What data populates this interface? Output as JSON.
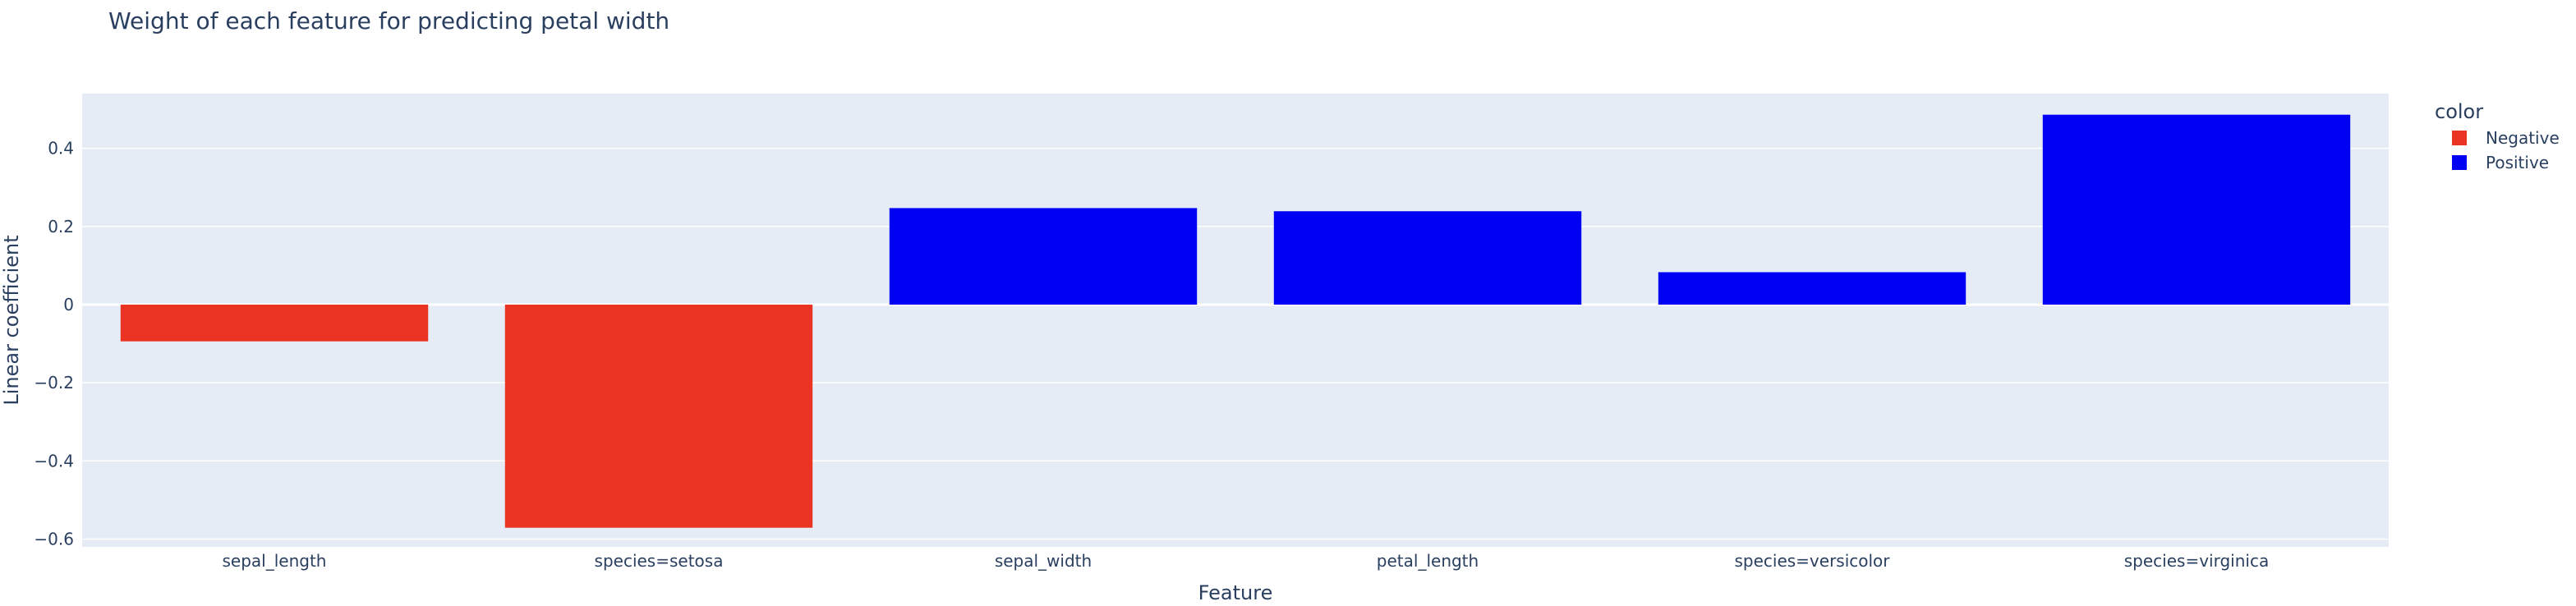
{
  "chart_data": {
    "type": "bar",
    "title": "Weight of each feature for predicting petal width",
    "xlabel": "Feature",
    "ylabel": "Linear coefficient",
    "categories": [
      "sepal_length",
      "species=setosa",
      "sepal_width",
      "petal_length",
      "species=versicolor",
      "species=virginica"
    ],
    "values": [
      -0.094,
      -0.571,
      0.247,
      0.239,
      0.083,
      0.486
    ],
    "bar_color_group": [
      "Negative",
      "Negative",
      "Positive",
      "Positive",
      "Positive",
      "Positive"
    ],
    "ylim": [
      -0.62,
      0.54
    ],
    "yticks": [
      0.4,
      0.2,
      0,
      -0.2,
      -0.4,
      -0.6
    ],
    "ytick_labels": [
      "0.4",
      "0.2",
      "0",
      "−0.2",
      "−0.4",
      "−0.6"
    ],
    "grid": true,
    "legend": {
      "title": "color",
      "position": "right",
      "entries": [
        {
          "name": "Negative",
          "color": "#EB3323"
        },
        {
          "name": "Positive",
          "color": "#0000F5"
        }
      ]
    },
    "colors": {
      "plot_background": "#E5ECF6",
      "gridline": "#ffffff",
      "text": "#2a3f5f"
    }
  }
}
